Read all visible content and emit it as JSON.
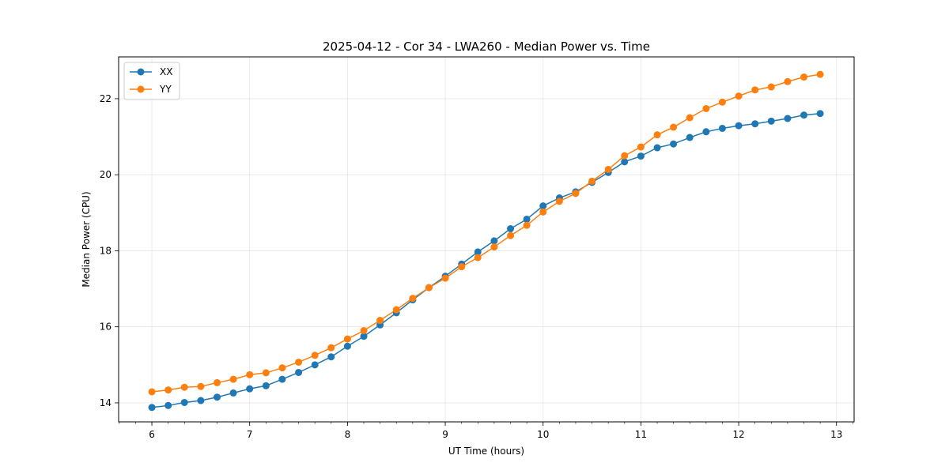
{
  "chart_data": {
    "type": "line",
    "title": "2025-04-12 - Cor 34 - LWA260 - Median Power vs. Time",
    "xlabel": "UT Time (hours)",
    "ylabel": "Median Power (CPU)",
    "xlim": [
      5.66,
      13.18
    ],
    "ylim": [
      13.5,
      23.1
    ],
    "xticks": [
      6,
      7,
      8,
      9,
      10,
      11,
      12,
      13
    ],
    "xtick_labels": [
      "6",
      "7",
      "8",
      "9",
      "10",
      "11",
      "12",
      "13"
    ],
    "yticks": [
      14,
      16,
      18,
      20,
      22
    ],
    "ytick_labels": [
      "14",
      "16",
      "18",
      "20",
      "22"
    ],
    "grid": true,
    "legend_position": "top-left",
    "x": [
      6.0,
      6.167,
      6.333,
      6.5,
      6.667,
      6.833,
      7.0,
      7.167,
      7.333,
      7.5,
      7.667,
      7.833,
      8.0,
      8.167,
      8.333,
      8.5,
      8.667,
      8.833,
      9.0,
      9.167,
      9.333,
      9.5,
      9.667,
      9.833,
      10.0,
      10.167,
      10.333,
      10.5,
      10.667,
      10.833,
      11.0,
      11.167,
      11.333,
      11.5,
      11.667,
      11.833,
      12.0,
      12.167,
      12.333,
      12.5,
      12.667,
      12.833
    ],
    "series": [
      {
        "name": "XX",
        "color": "#1f77b4",
        "values": [
          13.88,
          13.93,
          14.01,
          14.06,
          14.15,
          14.26,
          14.37,
          14.45,
          14.62,
          14.8,
          15.0,
          15.21,
          15.49,
          15.75,
          16.05,
          16.37,
          16.71,
          17.03,
          17.33,
          17.65,
          17.97,
          18.26,
          18.58,
          18.83,
          19.18,
          19.39,
          19.55,
          19.8,
          20.06,
          20.34,
          20.49,
          20.71,
          20.81,
          20.98,
          21.13,
          21.22,
          21.29,
          21.34,
          21.41,
          21.48,
          21.57,
          21.61
        ]
      },
      {
        "name": "YY",
        "color": "#ff7f0e",
        "values": [
          14.29,
          14.34,
          14.41,
          14.43,
          14.53,
          14.62,
          14.74,
          14.79,
          14.92,
          15.07,
          15.25,
          15.45,
          15.68,
          15.9,
          16.17,
          16.45,
          16.75,
          17.03,
          17.28,
          17.58,
          17.82,
          18.1,
          18.4,
          18.67,
          19.02,
          19.3,
          19.51,
          19.83,
          20.14,
          20.5,
          20.73,
          21.05,
          21.25,
          21.5,
          21.74,
          21.91,
          22.07,
          22.23,
          22.31,
          22.45,
          22.57,
          22.64
        ]
      }
    ]
  }
}
